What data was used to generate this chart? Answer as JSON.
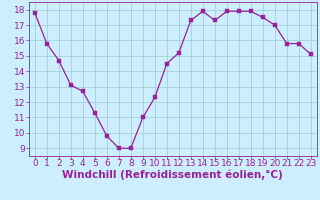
{
  "x": [
    0,
    1,
    2,
    3,
    4,
    5,
    6,
    7,
    8,
    9,
    10,
    11,
    12,
    13,
    14,
    15,
    16,
    17,
    18,
    19,
    20,
    21,
    22,
    23
  ],
  "y": [
    17.8,
    15.8,
    14.7,
    13.1,
    12.7,
    11.3,
    9.8,
    9.0,
    9.0,
    11.0,
    12.3,
    14.5,
    15.2,
    17.3,
    17.9,
    17.3,
    17.9,
    17.9,
    17.9,
    17.5,
    17.0,
    15.8,
    15.8,
    15.1
  ],
  "line_color": "#992299",
  "marker_color": "#992299",
  "bg_color": "#cceeff",
  "grid_color": "#99cccc",
  "xlabel": "Windchill (Refroidissement éolien,°C)",
  "xlabel_color": "#992299",
  "tick_color": "#992299",
  "label_color": "#992299",
  "ylim": [
    8.5,
    18.5
  ],
  "yticks": [
    9,
    10,
    11,
    12,
    13,
    14,
    15,
    16,
    17,
    18
  ],
  "xticks": [
    0,
    1,
    2,
    3,
    4,
    5,
    6,
    7,
    8,
    9,
    10,
    11,
    12,
    13,
    14,
    15,
    16,
    17,
    18,
    19,
    20,
    21,
    22,
    23
  ],
  "xlim": [
    -0.5,
    23.5
  ],
  "font_size": 6.5,
  "xlabel_fontsize": 7.5,
  "marker_size": 2.5,
  "line_width": 0.9
}
